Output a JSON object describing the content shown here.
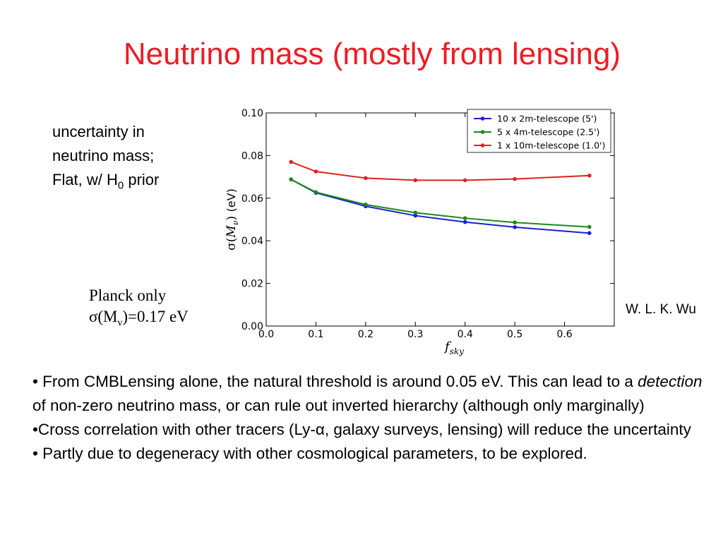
{
  "slide": {
    "title": "Neutrino mass (mostly from lensing)",
    "description": {
      "line1": "uncertainty in",
      "line2": "neutrino mass;",
      "line3_pre": "Flat, w/ H",
      "line3_sub": "0",
      "line3_post": " prior"
    },
    "planck": {
      "line1": "Planck only",
      "line2_pre": "σ(M",
      "line2_sub": "ν",
      "line2_post": ")=0.17 eV"
    },
    "credit": "W. L. K. Wu",
    "bullets": {
      "b1_pre": "• From CMBLensing alone, the natural threshold is around 0.05 eV.  This can lead to a ",
      "b1_em": "detection",
      "b1_post": " of non-zero neutrino mass, or can rule out inverted hierarchy (although only marginally)",
      "b2": "•Cross correlation with other tracers (Ly-α, galaxy surveys, lensing) will reduce the uncertainty",
      "b3": "• Partly due to degeneracy with other cosmological parameters, to be explored."
    }
  },
  "chart_data": {
    "type": "line",
    "xlabel": "f_sky",
    "ylabel": "σ(M_ν) (eV)",
    "xlim": [
      0.0,
      0.7
    ],
    "ylim": [
      0.0,
      0.1
    ],
    "xticks": [
      "0.0",
      "0.1",
      "0.2",
      "0.3",
      "0.4",
      "0.5",
      "0.6"
    ],
    "yticks": [
      "0.00",
      "0.02",
      "0.04",
      "0.06",
      "0.08",
      "0.10"
    ],
    "legend_position": "top-right",
    "grid": false,
    "x": [
      0.05,
      0.1,
      0.2,
      0.3,
      0.4,
      0.5,
      0.65
    ],
    "series": [
      {
        "name": "10 x 2m-telescope (5')",
        "color": "#1f1fcc",
        "values": [
          0.0688,
          0.0625,
          0.0562,
          0.0518,
          0.0488,
          0.0464,
          0.0436
        ]
      },
      {
        "name": "5 x 4m-telescope (2.5')",
        "color": "#1a8a1a",
        "values": [
          0.0688,
          0.0628,
          0.057,
          0.0532,
          0.0506,
          0.0486,
          0.0465
        ]
      },
      {
        "name": "1 x 10m-telescope (1.0')",
        "color": "#dd2222",
        "values": [
          0.077,
          0.0725,
          0.0694,
          0.0684,
          0.0684,
          0.069,
          0.0706
        ]
      }
    ]
  }
}
